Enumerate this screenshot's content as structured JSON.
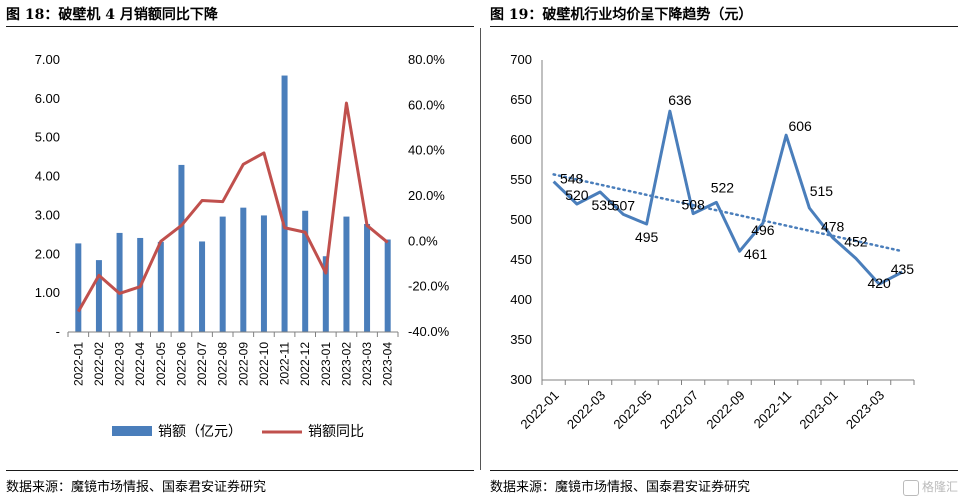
{
  "left_panel": {
    "title": "图 18：破壁机 4 月销额同比下降",
    "source": "数据来源：魔镜市场情报、国泰君安证券研究"
  },
  "right_panel": {
    "title": "图 19：破壁机行业均价呈下降趋势（元）",
    "source": "数据来源：魔镜市场情报、国泰君安证券研究"
  },
  "watermark": "格隆汇",
  "colors": {
    "bar": "#4a7ebb",
    "line_red": "#c0504d",
    "line_blue": "#4a7ebb",
    "trend": "#4a7ebb"
  },
  "chart_data": [
    {
      "type": "bar",
      "categories": [
        "2022-01",
        "2022-02",
        "2022-03",
        "2022-04",
        "2022-05",
        "2022-06",
        "2022-07",
        "2022-08",
        "2022-09",
        "2022-10",
        "2022-11",
        "2022-12",
        "2023-01",
        "2023-02",
        "2023-03",
        "2023-04"
      ],
      "series": [
        {
          "name": "销额（亿元）",
          "type": "bar",
          "axis": "left",
          "values": [
            2.28,
            1.85,
            2.55,
            2.42,
            2.32,
            4.3,
            2.33,
            2.97,
            3.2,
            3.0,
            6.6,
            3.12,
            1.95,
            2.97,
            2.78,
            2.38
          ]
        },
        {
          "name": "销额同比",
          "type": "line",
          "axis": "right",
          "values": [
            -31,
            -15,
            -23,
            -20,
            0,
            7,
            18,
            17.5,
            34,
            39,
            6,
            4,
            -14,
            61,
            7,
            -0.5
          ]
        }
      ],
      "yleft": {
        "ticks": [
          "-",
          "1.00",
          "2.00",
          "3.00",
          "4.00",
          "5.00",
          "6.00",
          "7.00"
        ],
        "ylim": [
          0,
          7
        ]
      },
      "yright": {
        "ticks": [
          "-40.0%",
          "-20.0%",
          "0.0%",
          "20.0%",
          "40.0%",
          "60.0%",
          "80.0%"
        ],
        "ylim": [
          -40,
          80
        ]
      },
      "legend_position": "bottom"
    },
    {
      "type": "line",
      "categories": [
        "2022-01",
        "2022-02",
        "2022-03",
        "2022-04",
        "2022-05",
        "2022-06",
        "2022-07",
        "2022-08",
        "2022-09",
        "2022-10",
        "2022-11",
        "2022-12",
        "2023-01",
        "2023-02",
        "2023-03",
        "2023-04"
      ],
      "x_tick_labels": [
        "2022-01",
        "2022-03",
        "2022-05",
        "2022-07",
        "2022-09",
        "2022-11",
        "2023-01",
        "2023-03"
      ],
      "series": [
        {
          "name": "",
          "values": [
            548,
            520,
            535,
            507,
            495,
            636,
            508,
            522,
            461,
            496,
            606,
            515,
            478,
            452,
            420,
            435
          ],
          "labels": [
            "548",
            "520",
            "535",
            "507",
            "495",
            "636",
            "508",
            "522",
            "461",
            "496",
            "606",
            "515",
            "478",
            "452",
            "420",
            "435"
          ]
        }
      ],
      "trendline": {
        "style": "dotted linear",
        "start": 557,
        "end": 461
      },
      "yaxis": {
        "ticks": [
          "300",
          "350",
          "400",
          "450",
          "500",
          "550",
          "600",
          "650",
          "700"
        ],
        "ylim": [
          300,
          700
        ]
      }
    }
  ]
}
